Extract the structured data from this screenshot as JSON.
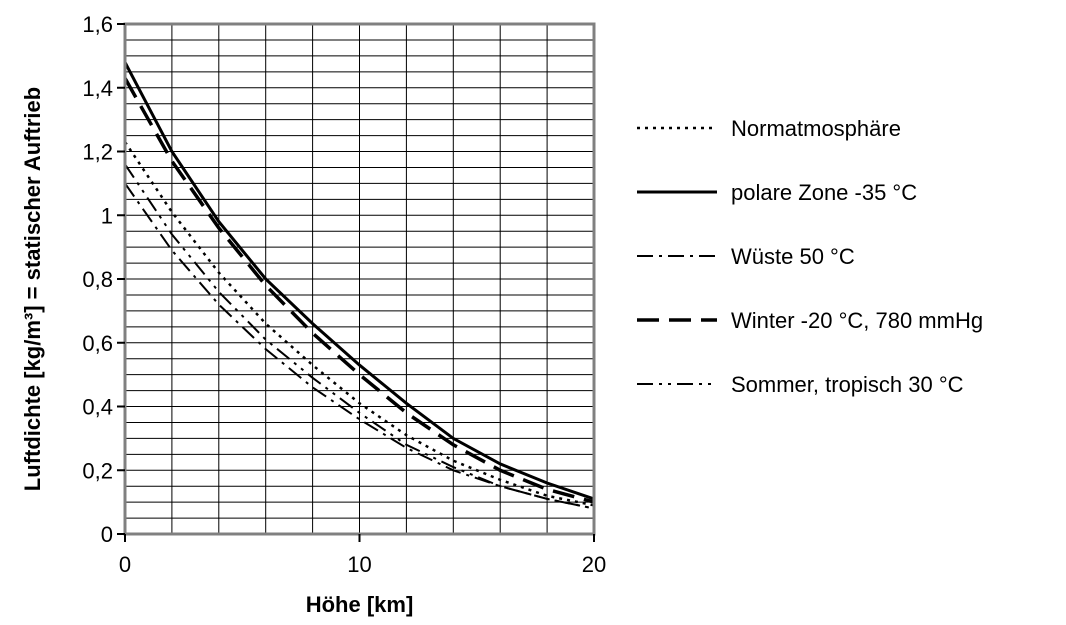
{
  "chart_data": {
    "type": "line",
    "xlabel": "Höhe [km]",
    "ylabel": "Luftdichte [kg/m³] = statischer Auftrieb",
    "xlim": [
      0,
      20
    ],
    "ylim": [
      0,
      1.6
    ],
    "x_ticks": [
      "0",
      "10",
      "20"
    ],
    "x_tick_values": [
      0,
      10,
      20
    ],
    "y_ticks": [
      "0",
      "0,2",
      "0,4",
      "0,6",
      "0,8",
      "1",
      "1,2",
      "1,4",
      "1,6"
    ],
    "y_tick_values": [
      0,
      0.2,
      0.4,
      0.6,
      0.8,
      1.0,
      1.2,
      1.4,
      1.6
    ],
    "grid": true,
    "legend_position": "right",
    "x": [
      0,
      2,
      4,
      6,
      8,
      10,
      12,
      14,
      16,
      18,
      20
    ],
    "series": [
      {
        "name": "Normatmosphäre",
        "dash": "dotted",
        "values": [
          1.23,
          1.01,
          0.82,
          0.66,
          0.53,
          0.41,
          0.31,
          0.23,
          0.17,
          0.12,
          0.09
        ]
      },
      {
        "name": "polare Zone -35 °C",
        "dash": "solid",
        "values": [
          1.48,
          1.2,
          0.98,
          0.8,
          0.66,
          0.53,
          0.41,
          0.3,
          0.22,
          0.16,
          0.11
        ]
      },
      {
        "name": "Wüste 50 °C",
        "dash": "dashdot",
        "values": [
          1.1,
          0.89,
          0.72,
          0.58,
          0.46,
          0.36,
          0.27,
          0.2,
          0.15,
          0.11,
          0.08
        ]
      },
      {
        "name": "Winter -20 °C, 780 mmHg",
        "dash": "dashed",
        "values": [
          1.43,
          1.17,
          0.96,
          0.78,
          0.63,
          0.5,
          0.38,
          0.28,
          0.2,
          0.14,
          0.1
        ]
      },
      {
        "name": "Sommer, tropisch 30 °C",
        "dash": "dashdotdot",
        "values": [
          1.16,
          0.94,
          0.76,
          0.61,
          0.49,
          0.38,
          0.28,
          0.21,
          0.15,
          0.11,
          0.08
        ]
      }
    ]
  }
}
